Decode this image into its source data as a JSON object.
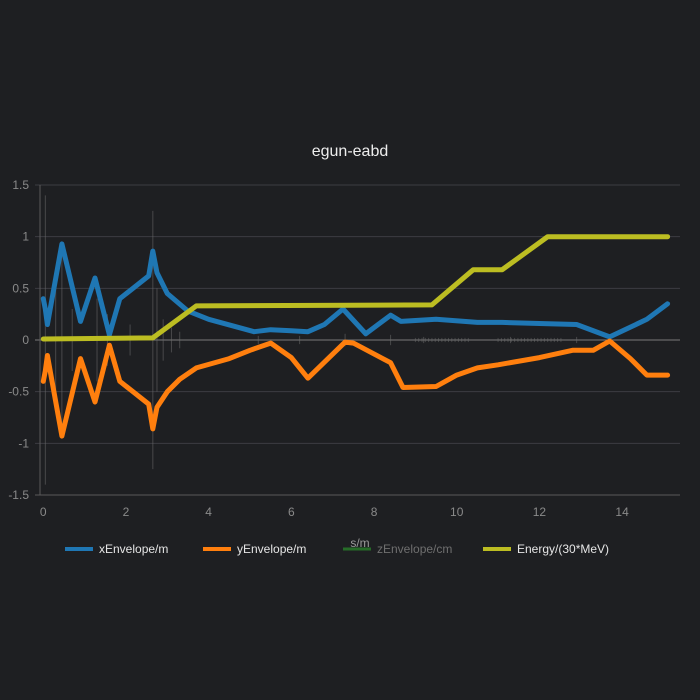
{
  "chart_data": {
    "type": "line",
    "title": "egun-eabd",
    "xlabel": "s/m",
    "ylabel": "",
    "xlim": [
      -0.2,
      15.4
    ],
    "ylim": [
      -1.5,
      1.5
    ],
    "x_ticks": [
      0,
      2,
      4,
      6,
      8,
      10,
      12,
      14
    ],
    "y_ticks": [
      -1.5,
      -1,
      -0.5,
      0,
      0.5,
      1,
      1.5
    ],
    "x_tick_labels": [
      "0",
      "2",
      "4",
      "6",
      "8",
      "10",
      "12",
      "14"
    ],
    "y_tick_labels": [
      "-1.5",
      "-1",
      "-0.5",
      "0",
      "0.5",
      "1",
      "1.5"
    ],
    "grid": true,
    "legend_position": "bottom",
    "series": [
      {
        "name": "xEnvelope/m",
        "color": "#1f77b4",
        "visible": true,
        "x": [
          0,
          0.05,
          0.1,
          0.45,
          0.9,
          1.25,
          1.6,
          1.85,
          2.55,
          2.65,
          2.75,
          3.0,
          3.5,
          4.0,
          5.1,
          5.5,
          6.0,
          6.4,
          6.8,
          7.25,
          7.8,
          8.4,
          8.65,
          9.5,
          10.5,
          11.1,
          12.0,
          12.9,
          13.7,
          14.6,
          15.1
        ],
        "values": [
          0.4,
          0.3,
          0.15,
          0.93,
          0.18,
          0.6,
          0.05,
          0.4,
          0.62,
          0.86,
          0.65,
          0.45,
          0.28,
          0.2,
          0.08,
          0.1,
          0.09,
          0.08,
          0.15,
          0.3,
          0.06,
          0.24,
          0.18,
          0.2,
          0.17,
          0.17,
          0.16,
          0.15,
          0.03,
          0.2,
          0.35
        ]
      },
      {
        "name": "yEnvelope/m",
        "color": "#ff7f0e",
        "visible": true,
        "x": [
          0,
          0.05,
          0.1,
          0.45,
          0.9,
          1.25,
          1.6,
          1.85,
          2.55,
          2.65,
          2.75,
          3.0,
          3.3,
          3.7,
          4.5,
          5.0,
          5.5,
          6.0,
          6.4,
          7.3,
          7.5,
          8.4,
          8.7,
          9.5,
          10.0,
          10.5,
          11.0,
          12.0,
          12.8,
          13.3,
          13.7,
          14.2,
          14.6,
          15.1
        ],
        "values": [
          -0.4,
          -0.3,
          -0.15,
          -0.93,
          -0.18,
          -0.6,
          -0.05,
          -0.4,
          -0.62,
          -0.86,
          -0.65,
          -0.5,
          -0.38,
          -0.27,
          -0.18,
          -0.1,
          -0.03,
          -0.17,
          -0.37,
          -0.02,
          -0.03,
          -0.22,
          -0.46,
          -0.45,
          -0.34,
          -0.27,
          -0.24,
          -0.17,
          -0.1,
          -0.1,
          -0.01,
          -0.18,
          -0.34,
          -0.34
        ]
      },
      {
        "name": "zEnvelope/cm",
        "color": "#2ca02c",
        "visible": false,
        "x": [],
        "values": []
      },
      {
        "name": "Energy/(30*MeV)",
        "color": "#bcbd22",
        "visible": true,
        "x": [
          0,
          2.65,
          3.7,
          9.4,
          10.4,
          11.1,
          12.2,
          15.1
        ],
        "values": [
          0.01,
          0.02,
          0.33,
          0.34,
          0.68,
          0.68,
          1.0,
          1.0
        ]
      }
    ]
  }
}
